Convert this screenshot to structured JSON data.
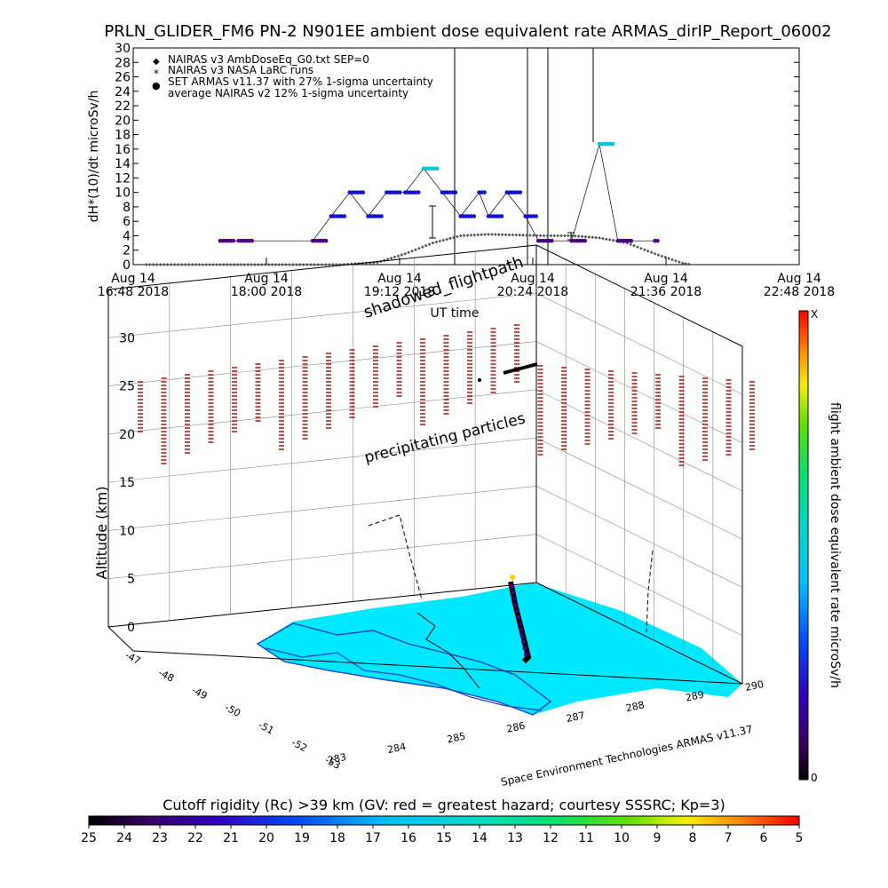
{
  "title": "PRLN_GLIDER_FM6 PN-2 N901EE ambient dose equivalent rate ARMAS_dirIP_Report_06002",
  "top_plot": {
    "ylabel": "dH*(10)/dt microSv/h",
    "xlabel": "UT time",
    "legend": [
      {
        "symbol": "◆",
        "label": "NAIRAS v3 AmbDoseEq_G0.txt SEP=0"
      },
      {
        "symbol": "*",
        "label": "NAIRAS v3 NASA LaRC runs"
      },
      {
        "symbol": "●",
        "label": "SET ARMAS v11.37 with 27% 1-sigma uncertainty"
      },
      {
        "symbol": "",
        "label": "average NAIRAS v2 12% 1-sigma uncertainty"
      }
    ],
    "x_ticks": [
      {
        "l1": "Aug 14",
        "l2": "16:48 2018"
      },
      {
        "l1": "Aug 14",
        "l2": "18:00 2018"
      },
      {
        "l1": "Aug 14",
        "l2": "19:12 2018"
      },
      {
        "l1": "Aug 14",
        "l2": "20:24 2018"
      },
      {
        "l1": "Aug 14",
        "l2": "21:36 2018"
      },
      {
        "l1": "Aug 14",
        "l2": "22:48 2018"
      }
    ]
  },
  "chart_data": [
    {
      "type": "scatter",
      "title": "PRLN_GLIDER_FM6 PN-2 N901EE ambient dose equivalent rate ARMAS_dirIP_Report_06002",
      "xlabel": "UT time",
      "ylabel": "dH*(10)/dt microSv/h",
      "ylim": [
        0,
        30
      ],
      "y_ticks": [
        0,
        2,
        4,
        6,
        8,
        10,
        12,
        14,
        16,
        18,
        20,
        22,
        24,
        26,
        28,
        30
      ],
      "x_tick_labels": [
        "Aug 14 16:48 2018",
        "Aug 14 18:00 2018",
        "Aug 14 19:12 2018",
        "Aug 14 20:24 2018",
        "Aug 14 21:36 2018",
        "Aug 14 22:48 2018"
      ],
      "series": [
        {
          "name": "NAIRAS v3 AmbDoseEq_G0.txt SEP=0",
          "x": [
            "17:20",
            "17:50",
            "18:20",
            "18:40",
            "19:00",
            "19:15",
            "19:30",
            "19:45",
            "20:00",
            "20:15",
            "20:30",
            "20:45",
            "21:00",
            "21:15",
            "21:30",
            "21:45"
          ],
          "values": [
            0,
            0,
            0,
            0,
            0.3,
            1.5,
            3,
            4,
            4.2,
            4.1,
            4,
            4,
            3.7,
            3,
            1.5,
            0.2
          ]
        },
        {
          "name": "SET ARMAS v11.37 with 27% 1-sigma uncertainty",
          "x": [
            "17:35",
            "17:45",
            "18:25",
            "18:35",
            "18:45",
            "18:55",
            "19:05",
            "19:15",
            "19:25",
            "19:35",
            "19:45",
            "19:55",
            "20:00",
            "20:10",
            "20:20",
            "20:27",
            "20:45",
            "21:00",
            "21:10",
            "21:30"
          ],
          "values": [
            3.3,
            3.3,
            3.3,
            6.7,
            10,
            6.7,
            10,
            10,
            13.3,
            10,
            6.7,
            10,
            6.7,
            10,
            6.7,
            3.3,
            3.3,
            16.7,
            3.3,
            3.3
          ]
        }
      ]
    },
    {
      "type": "scatter",
      "title": "",
      "ylabel": "Altitude (km)",
      "z_ticks": [
        0,
        5,
        10,
        15,
        20,
        25,
        30
      ],
      "lat_ticks": [
        "-47",
        "-48",
        "-49",
        "-50",
        "-51",
        "-52",
        "-53"
      ],
      "lon_ticks": [
        "283",
        "284",
        "285",
        "286",
        "287",
        "288",
        "289",
        "290"
      ],
      "annotations": [
        "shadowed_flightpath",
        "precipitating particles",
        "Space Environment Technologies ARMAS v11.37"
      ],
      "colorbar": {
        "label": "flight ambient dose equivalent rate microSv/h",
        "min_label": "0",
        "max_label": "X"
      }
    },
    {
      "type": "heatmap",
      "title": "Cutoff rigidity (Rc) >39 km (GV: red = greatest hazard; courtesy SSSRC; Kp=3)",
      "colorbar_ticks": [
        "25",
        "24",
        "23",
        "22",
        "21",
        "20",
        "19",
        "18",
        "17",
        "16",
        "15",
        "14",
        "13",
        "12",
        "11",
        "10",
        "9",
        "8",
        "7",
        "6",
        "5"
      ]
    }
  ],
  "cube": {
    "zlabel": "Altitude (km)",
    "z_ticks": [
      "0",
      "5",
      "10",
      "15",
      "20",
      "25",
      "30"
    ],
    "lat_ticks": [
      "-47",
      "-48",
      "-49",
      "-50",
      "-51",
      "-52",
      "-53"
    ],
    "lon_ticks": [
      "283",
      "284",
      "285",
      "286",
      "287",
      "288",
      "289",
      "290"
    ],
    "shadow_label": "shadowed_flightpath",
    "precip_label": "precipitating particles",
    "credit": "Space Environment Technologies ARMAS v11.37"
  },
  "colorbar_right": {
    "label": "flight ambient dose equivalent rate microSv/h",
    "top": "X",
    "bottom": "0"
  },
  "colorbar_bottom": {
    "title": "Cutoff rigidity (Rc) >39 km (GV: red = greatest hazard; courtesy SSSRC; Kp=3)",
    "ticks": [
      "25",
      "24",
      "23",
      "22",
      "21",
      "20",
      "19",
      "18",
      "17",
      "16",
      "15",
      "14",
      "13",
      "12",
      "11",
      "10",
      "9",
      "8",
      "7",
      "6",
      "5"
    ]
  },
  "colors": {
    "nairas": "#404040",
    "armas_dark": "#4b0082",
    "armas_blue": "#1010d0",
    "armas_cyan": "#00c8d8",
    "ocean": "#00e8ff",
    "coast": "#1f3fd0",
    "precip": "#b00000"
  }
}
